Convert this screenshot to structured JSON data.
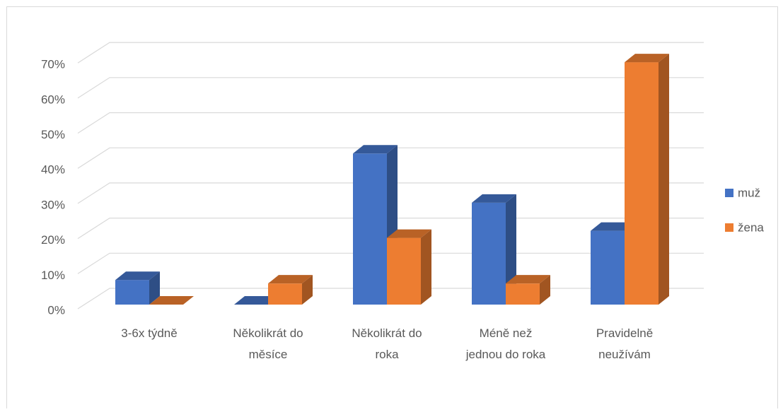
{
  "chart_data": {
    "type": "bar3d",
    "categories": [
      "3-6x týdně",
      "Několikrát do měsíce",
      "Několikrát do roka",
      "Méně než jednou do roka",
      "Pravidelně neužívám"
    ],
    "series": [
      {
        "name": "muž",
        "color": "#4472c4",
        "values": [
          7,
          0,
          43,
          29,
          21
        ]
      },
      {
        "name": "žena",
        "color": "#ed7d31",
        "values": [
          0,
          6,
          19,
          6,
          69
        ]
      }
    ],
    "ylim": [
      0,
      70
    ],
    "yticks": [
      {
        "value": 0,
        "label": "0%"
      },
      {
        "value": 10,
        "label": "10%"
      },
      {
        "value": 20,
        "label": "20%"
      },
      {
        "value": 30,
        "label": "30%"
      },
      {
        "value": 40,
        "label": "40%"
      },
      {
        "value": 50,
        "label": "50%"
      },
      {
        "value": 60,
        "label": "60%"
      },
      {
        "value": 70,
        "label": "70%"
      }
    ],
    "grid": true,
    "legend": "right"
  }
}
